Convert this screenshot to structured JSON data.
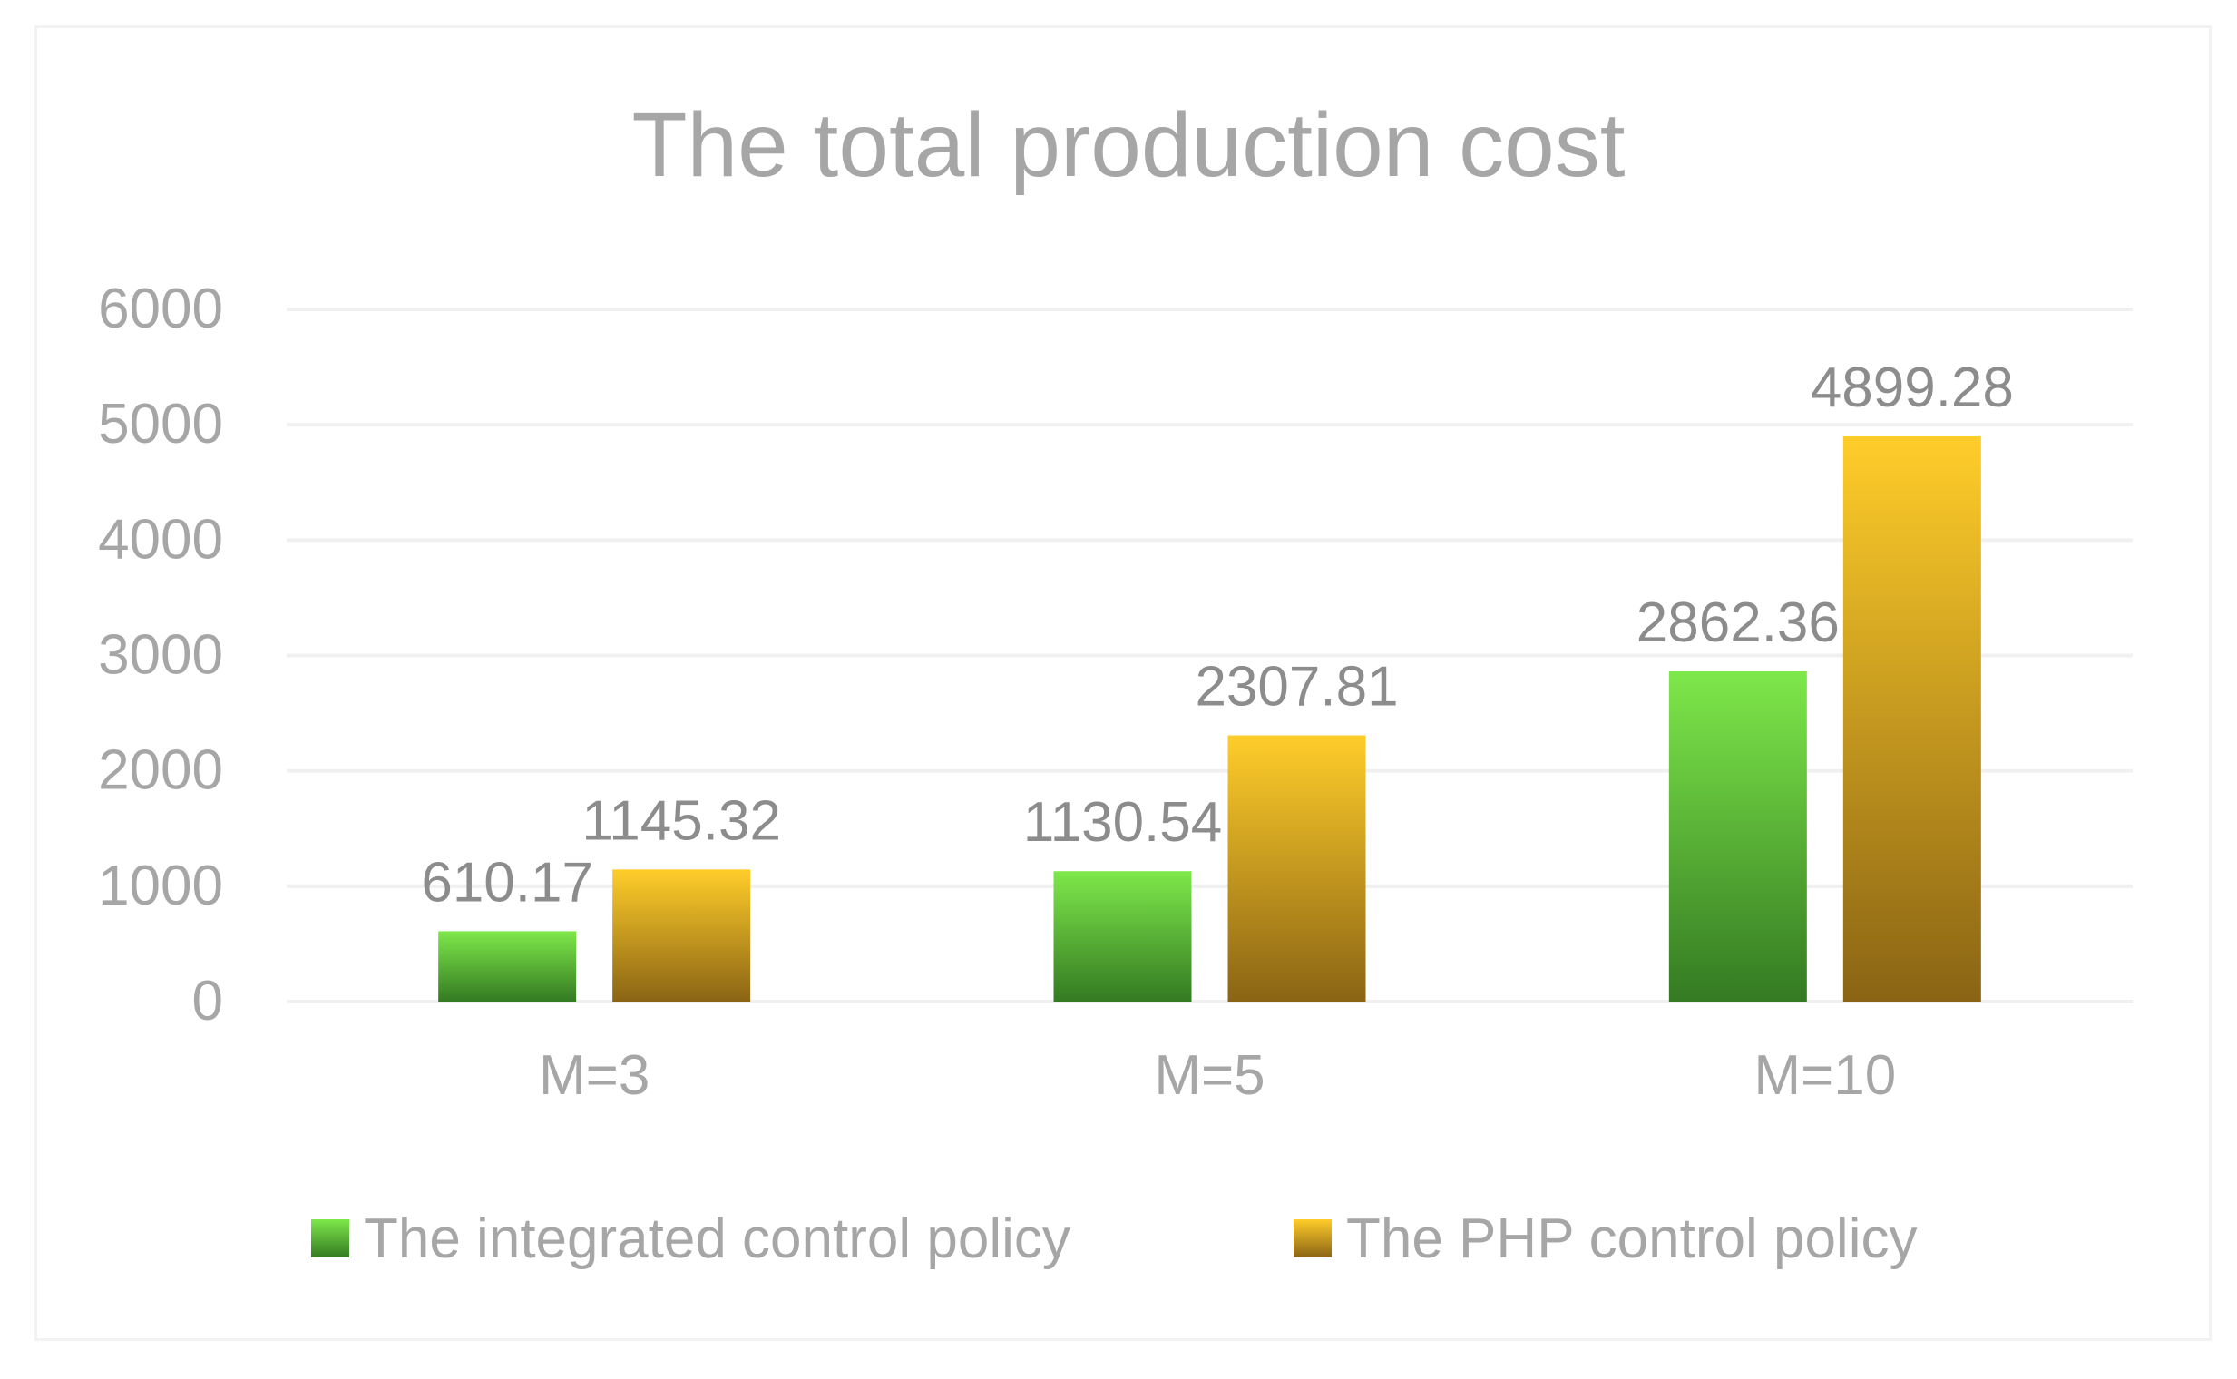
{
  "chart_data": {
    "type": "bar",
    "title": "The total production cost",
    "xlabel": "",
    "ylabel": "",
    "categories": [
      "M=3",
      "M=5",
      "M=10"
    ],
    "series": [
      {
        "name": "The integrated control policy",
        "values": [
          610.17,
          1130.54,
          2862.36
        ],
        "labels": [
          "610.17",
          "1130.54",
          "2862.36"
        ],
        "color_top": "#7ee84a",
        "color_bottom": "#347a22"
      },
      {
        "name": "The PHP control policy",
        "values": [
          1145.32,
          2307.81,
          4899.28
        ],
        "labels": [
          "1145.32",
          "2307.81",
          "4899.28"
        ],
        "color_top": "#ffcd2a",
        "color_bottom": "#8a6414"
      }
    ],
    "ylim": [
      0,
      6000
    ],
    "yticks": [
      "0",
      "1000",
      "2000",
      "3000",
      "4000",
      "5000",
      "6000"
    ],
    "grid": true,
    "legend_position": "bottom",
    "data_labels": true
  }
}
